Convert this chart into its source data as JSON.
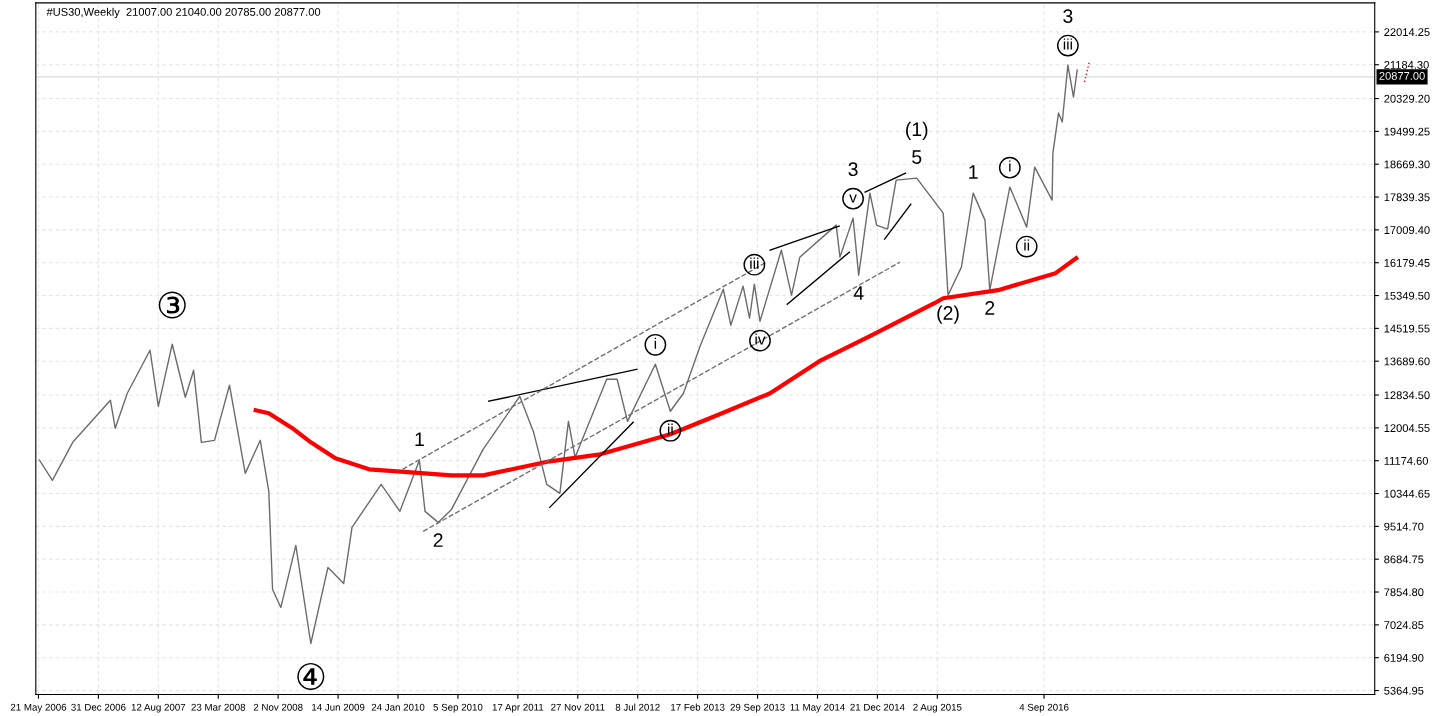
{
  "chart_data": {
    "type": "line",
    "title": "#US30,Weekly  21007.00 21040.00 20785.00 20877.00",
    "xlim": [
      "2006-05-11",
      "2020-01-23"
    ],
    "ylim": [
      5264,
      22748
    ],
    "xticks": [
      {
        "value": "2006-05-21",
        "label": "21 May 2006"
      },
      {
        "value": "2006-12-31",
        "label": "31 Dec 2006"
      },
      {
        "value": "2007-08-12",
        "label": "12 Aug 2007"
      },
      {
        "value": "2008-03-23",
        "label": "23 Mar 2008"
      },
      {
        "value": "2008-11-02",
        "label": "2 Nov 2008"
      },
      {
        "value": "2009-06-14",
        "label": "14 Jun 2009"
      },
      {
        "value": "2010-01-24",
        "label": "24 Jan 2010"
      },
      {
        "value": "2010-09-05",
        "label": "5 Sep 2010"
      },
      {
        "value": "2011-04-17",
        "label": "17 Apr 2011"
      },
      {
        "value": "2011-11-27",
        "label": "27 Nov 2011"
      },
      {
        "value": "2012-07-08",
        "label": "8 Jul 2012"
      },
      {
        "value": "2013-02-17",
        "label": "17 Feb 2013"
      },
      {
        "value": "2013-09-29",
        "label": "29 Sep 2013"
      },
      {
        "value": "2014-05-11",
        "label": "11 May 2014"
      },
      {
        "value": "2014-12-21",
        "label": "21 Dec 2014"
      },
      {
        "value": "2015-08-02",
        "label": "2 Aug 2015"
      },
      {
        "value": "2016-09-04",
        "label": "4 Sep 2016"
      }
    ],
    "yticks": [
      {
        "value": 5364.95,
        "label": "5364.95"
      },
      {
        "value": 6194.9,
        "label": "6194.90"
      },
      {
        "value": 7024.85,
        "label": "7024.85"
      },
      {
        "value": 7854.8,
        "label": "7854.80"
      },
      {
        "value": 8684.75,
        "label": "8684.75"
      },
      {
        "value": 9514.7,
        "label": "9514.70"
      },
      {
        "value": 10344.65,
        "label": "10344.65"
      },
      {
        "value": 11174.6,
        "label": "11174.60"
      },
      {
        "value": 12004.55,
        "label": "12004.55"
      },
      {
        "value": 12834.5,
        "label": "12834.50"
      },
      {
        "value": 13689.6,
        "label": "13689.60"
      },
      {
        "value": 14519.55,
        "label": "14519.55"
      },
      {
        "value": 15349.5,
        "label": "15349.50"
      },
      {
        "value": 16179.45,
        "label": "16179.45"
      },
      {
        "value": 17009.4,
        "label": "17009.40"
      },
      {
        "value": 17839.35,
        "label": "17839.35"
      },
      {
        "value": 18669.3,
        "label": "18669.30"
      },
      {
        "value": 19499.25,
        "label": "19499.25"
      },
      {
        "value": 20329.2,
        "label": "20329.20"
      },
      {
        "value": 21184.3,
        "label": "21184.30"
      },
      {
        "value": 22014.25,
        "label": "22014.25"
      }
    ],
    "grid": true,
    "legend": false,
    "marker": "none",
    "ref_lines": [
      {
        "axis": "y",
        "value": 20877,
        "label": "20877.00",
        "color": "#dcdcdc"
      }
    ],
    "series": [
      {
        "color": "#6b6b6b",
        "line_style": "solid",
        "x": [
          "2006-05-25",
          "2006-07-12",
          "2006-09-26",
          "2007-02-14",
          "2007-03-04",
          "2007-04-18",
          "2007-07-12",
          "2007-08-12",
          "2007-10-03",
          "2007-11-21",
          "2007-12-22",
          "2008-01-20",
          "2008-03-09",
          "2008-05-04",
          "2008-07-02",
          "2008-08-27",
          "2008-09-28",
          "2008-10-12",
          "2008-11-12",
          "2009-01-07",
          "2009-03-04",
          "2009-05-07",
          "2009-07-05",
          "2009-08-05",
          "2009-11-22",
          "2010-01-31",
          "2010-04-14",
          "2010-05-05",
          "2010-06-23",
          "2010-08-12",
          "2010-12-08",
          "2011-04-24",
          "2011-06-15",
          "2011-08-03",
          "2011-09-21",
          "2011-10-23",
          "2011-11-17",
          "2012-03-14",
          "2012-04-22",
          "2012-05-31",
          "2012-09-12",
          "2012-11-07",
          "2012-12-26",
          "2013-02-26",
          "2013-05-24",
          "2013-06-21",
          "2013-08-06",
          "2013-08-30",
          "2013-09-17",
          "2013-10-08",
          "2013-12-27",
          "2014-02-03",
          "2014-03-06",
          "2014-07-20",
          "2014-08-03",
          "2014-09-21",
          "2014-10-12",
          "2014-11-23",
          "2014-12-18",
          "2015-01-28",
          "2015-03-01",
          "2015-05-17",
          "2015-08-24",
          "2015-09-11",
          "2015-10-31",
          "2015-12-14",
          "2016-01-27",
          "2016-02-14",
          "2016-04-29",
          "2016-07-01",
          "2016-07-31",
          "2016-10-04",
          "2016-10-07",
          "2016-10-28",
          "2016-11-11",
          "2016-12-02",
          "2016-12-23",
          "2017-01-06"
        ],
        "values": [
          11184,
          10678,
          11639,
          12702,
          11994,
          12879,
          13967,
          12550,
          14119,
          12778,
          13461,
          11639,
          11690,
          13082,
          10855,
          11690,
          10400,
          7920,
          7465,
          9034,
          6554,
          8477,
          8072,
          9489,
          10577,
          9894,
          11184,
          9894,
          9615,
          9944,
          11462,
          12803,
          11892,
          10577,
          10349,
          12170,
          11260,
          13233,
          13233,
          12170,
          13613,
          12424,
          12879,
          14068,
          15511,
          14600,
          15587,
          14776,
          15638,
          14701,
          16497,
          15359,
          16320,
          17130,
          16320,
          17307,
          15864,
          17939,
          17130,
          17029,
          18268,
          18318,
          17433,
          15358,
          16067,
          17939,
          17256,
          15485,
          18091,
          17079,
          18597,
          17762,
          18951,
          19963,
          19736,
          21177,
          20368,
          21051
        ]
      },
      {
        "color": "#ff0000",
        "line_style": "solid",
        "x": [
          "2008-08-10",
          "2008-09-28",
          "2008-12-31",
          "2009-03-04",
          "2009-06-04",
          "2009-10-08",
          "2010-03-14",
          "2010-08-12",
          "2010-12-08",
          "2011-08-14",
          "2012-02-19",
          "2012-11-07",
          "2013-05-10",
          "2013-11-15",
          "2014-05-18",
          "2014-11-23",
          "2015-07-22",
          "2015-08-24",
          "2016-03-16",
          "2016-10-17",
          "2017-01-02"
        ],
        "values": [
          12449,
          12373,
          11968,
          11639,
          11234,
          10956,
          10880,
          10804,
          10804,
          11159,
          11336,
          11842,
          12348,
          12879,
          13689,
          14321,
          15156,
          15282,
          15485,
          15915,
          16294
        ]
      },
      {
        "color": "#ff0000",
        "line_style": "dotted",
        "x": [
          "2017-02-02",
          "2017-02-20"
        ],
        "values": [
          20747,
          21253
        ]
      },
      {
        "color": "#000000",
        "line_style": "solid",
        "x": [
          "2010-12-29",
          "2012-07-05"
        ],
        "values": [
          12677,
          13486
        ]
      },
      {
        "color": "#000000",
        "line_style": "solid",
        "x": [
          "2011-08-14",
          "2012-06-21"
        ],
        "values": [
          9995,
          12145
        ]
      },
      {
        "color": "#000000",
        "line_style": "solid",
        "x": [
          "2013-11-15",
          "2014-07-31"
        ],
        "values": [
          16497,
          17104
        ]
      },
      {
        "color": "#000000",
        "line_style": "solid",
        "x": [
          "2014-01-18",
          "2014-09-07"
        ],
        "values": [
          15131,
          16446
        ]
      },
      {
        "color": "#000000",
        "line_style": "solid",
        "x": [
          "2014-11-05",
          "2015-04-05"
        ],
        "values": [
          17965,
          18445
        ]
      },
      {
        "color": "#000000",
        "line_style": "solid",
        "x": [
          "2015-01-17",
          "2015-04-25"
        ],
        "values": [
          16775,
          17661
        ]
      },
      {
        "color": "#707070",
        "line_style": "dashed",
        "x": [
          "2010-02-10",
          "2013-11-01"
        ],
        "values": [
          10956,
          16193
        ]
      },
      {
        "color": "#707070",
        "line_style": "dashed",
        "x": [
          "2010-04-28",
          "2015-03-15"
        ],
        "values": [
          9388,
          16193
        ]
      }
    ],
    "annotations": [
      {
        "text": "③",
        "x": "2007-10-03",
        "y": 14119
      },
      {
        "text": "④",
        "x": "2009-03-04",
        "y": 6554
      },
      {
        "text": "1",
        "x": "2010-04-14",
        "y": 11184
      },
      {
        "text": "2",
        "x": "2010-06-23",
        "y": 9615
      },
      {
        "text": "i",
        "x": "2012-09-12",
        "y": 13613
      },
      {
        "text": "ii",
        "x": "2012-11-07",
        "y": 12424
      },
      {
        "text": "iii",
        "x": "2013-09-17",
        "y": 15638
      },
      {
        "text": "iv",
        "x": "2013-10-08",
        "y": 14701
      },
      {
        "text": "v",
        "x": "2014-09-21",
        "y": 17307
      },
      {
        "text": "3",
        "x": "2014-09-21",
        "y": 17307
      },
      {
        "text": "4",
        "x": "2014-10-12",
        "y": 15864
      },
      {
        "text": "5",
        "x": "2015-05-17",
        "y": 18318
      },
      {
        "text": "(1)",
        "x": "2015-05-17",
        "y": 18318
      },
      {
        "text": "(2)",
        "x": "2015-09-11",
        "y": 15358
      },
      {
        "text": "1",
        "x": "2015-12-14",
        "y": 17939
      },
      {
        "text": "2",
        "x": "2016-02-14",
        "y": 15485
      },
      {
        "text": "i",
        "x": "2016-04-29",
        "y": 18091
      },
      {
        "text": "ii",
        "x": "2016-07-01",
        "y": 17079
      },
      {
        "text": "iii",
        "x": "2016-12-02",
        "y": 21177
      },
      {
        "text": "3",
        "x": "2016-12-02",
        "y": 21177
      }
    ]
  }
}
